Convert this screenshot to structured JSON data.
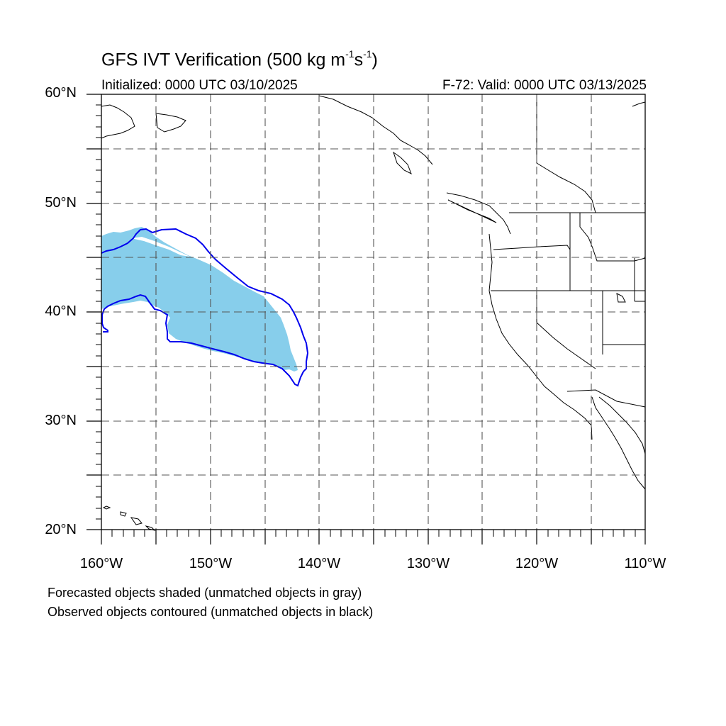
{
  "title": {
    "main": "GFS IVT Verification (500 kg m",
    "exp1": "-1",
    "mid": "s",
    "exp2": "-1",
    "end": ")"
  },
  "subtitle": {
    "initialized": "Initialized: 0000 UTC 03/10/2025",
    "valid": "F-72: Valid: 0000 UTC 03/13/2025"
  },
  "axes": {
    "lat_labels": [
      "60°N",
      "50°N",
      "40°N",
      "30°N",
      "20°N"
    ],
    "lon_labels": [
      "160°W",
      "150°W",
      "140°W",
      "130°W",
      "120°W",
      "110°W"
    ],
    "lat_range": [
      20,
      60
    ],
    "lon_range": [
      -160,
      -110
    ]
  },
  "legend": {
    "forecast": "Forecasted objects shaded (unmatched objects in gray)",
    "observed": "Observed objects contoured (unmatched objects in black)"
  },
  "colors": {
    "forecast_fill": "#87ceeb",
    "observed_contour": "#0000ff",
    "grid": "#555555"
  }
}
